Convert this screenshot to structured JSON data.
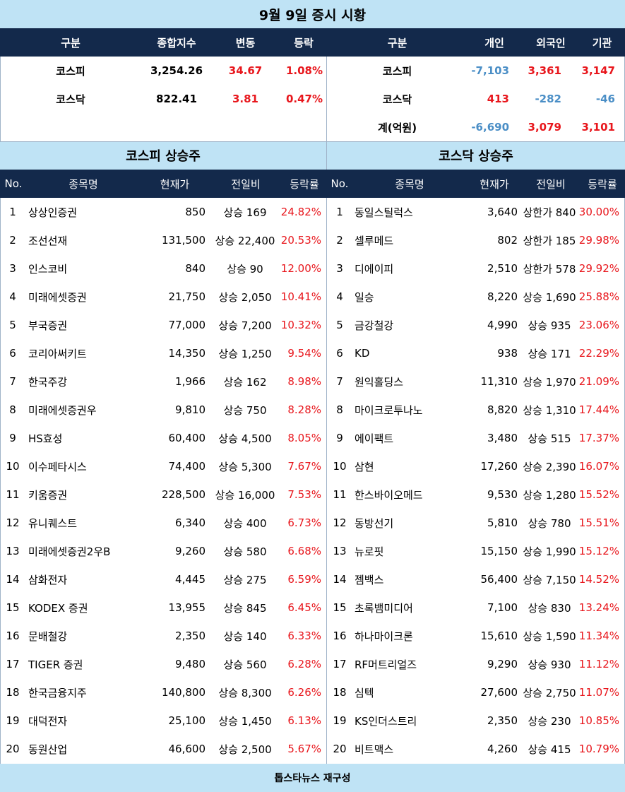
{
  "title": "9월 9일 증시 시황",
  "summary": {
    "index_headers": [
      "구분",
      "종합지수",
      "변동",
      "등락"
    ],
    "index_rows": [
      {
        "name": "코스피",
        "index": "3,254.26",
        "change": "34.67",
        "rate": "1.08%"
      },
      {
        "name": "코스닥",
        "index": "822.41",
        "change": "3.81",
        "rate": "0.47%"
      }
    ],
    "investor_headers": [
      "구분",
      "개인",
      "외국인",
      "기관"
    ],
    "investor_rows": [
      {
        "name": "코스피",
        "individual": "-7,103",
        "foreign": "3,361",
        "institution": "3,147"
      },
      {
        "name": "코스닥",
        "individual": "413",
        "foreign": "-282",
        "institution": "-46"
      },
      {
        "name": "계(억원)",
        "individual": "-6,690",
        "foreign": "3,079",
        "institution": "3,101"
      }
    ]
  },
  "kospi": {
    "title": "코스피 상승주",
    "headers": [
      "No.",
      "종목명",
      "현재가",
      "전일비",
      "등락률"
    ],
    "rows": [
      {
        "no": "1",
        "name": "상상인증권",
        "price": "850",
        "diff": "상승 169",
        "rate": "24.82%"
      },
      {
        "no": "2",
        "name": "조선선재",
        "price": "131,500",
        "diff": "상승 22,400",
        "rate": "20.53%"
      },
      {
        "no": "3",
        "name": "인스코비",
        "price": "840",
        "diff": "상승 90",
        "rate": "12.00%"
      },
      {
        "no": "4",
        "name": "미래에셋증권",
        "price": "21,750",
        "diff": "상승 2,050",
        "rate": "10.41%"
      },
      {
        "no": "5",
        "name": "부국증권",
        "price": "77,000",
        "diff": "상승 7,200",
        "rate": "10.32%"
      },
      {
        "no": "6",
        "name": "코리아써키트",
        "price": "14,350",
        "diff": "상승 1,250",
        "rate": "9.54%"
      },
      {
        "no": "7",
        "name": "한국주강",
        "price": "1,966",
        "diff": "상승 162",
        "rate": "8.98%"
      },
      {
        "no": "8",
        "name": "미래에셋증권우",
        "price": "9,810",
        "diff": "상승 750",
        "rate": "8.28%"
      },
      {
        "no": "9",
        "name": "HS효성",
        "price": "60,400",
        "diff": "상승 4,500",
        "rate": "8.05%"
      },
      {
        "no": "10",
        "name": "이수페타시스",
        "price": "74,400",
        "diff": "상승 5,300",
        "rate": "7.67%"
      },
      {
        "no": "11",
        "name": "키움증권",
        "price": "228,500",
        "diff": "상승 16,000",
        "rate": "7.53%"
      },
      {
        "no": "12",
        "name": "유니퀘스트",
        "price": "6,340",
        "diff": "상승 400",
        "rate": "6.73%"
      },
      {
        "no": "13",
        "name": "미래에셋증권2우B",
        "price": "9,260",
        "diff": "상승 580",
        "rate": "6.68%"
      },
      {
        "no": "14",
        "name": "삼화전자",
        "price": "4,445",
        "diff": "상승 275",
        "rate": "6.59%"
      },
      {
        "no": "15",
        "name": "KODEX 증권",
        "price": "13,955",
        "diff": "상승 845",
        "rate": "6.45%"
      },
      {
        "no": "16",
        "name": "문배철강",
        "price": "2,350",
        "diff": "상승 140",
        "rate": "6.33%"
      },
      {
        "no": "17",
        "name": "TIGER 증권",
        "price": "9,480",
        "diff": "상승 560",
        "rate": "6.28%"
      },
      {
        "no": "18",
        "name": "한국금융지주",
        "price": "140,800",
        "diff": "상승 8,300",
        "rate": "6.26%"
      },
      {
        "no": "19",
        "name": "대덕전자",
        "price": "25,100",
        "diff": "상승 1,450",
        "rate": "6.13%"
      },
      {
        "no": "20",
        "name": "동원산업",
        "price": "46,600",
        "diff": "상승 2,500",
        "rate": "5.67%"
      }
    ]
  },
  "kosdaq": {
    "title": "코스닥 상승주",
    "headers": [
      "No.",
      "종목명",
      "현재가",
      "전일비",
      "등락률"
    ],
    "rows": [
      {
        "no": "1",
        "name": "동일스틸럭스",
        "price": "3,640",
        "diff": "상한가 840",
        "rate": "30.00%"
      },
      {
        "no": "2",
        "name": "셀루메드",
        "price": "802",
        "diff": "상한가 185",
        "rate": "29.98%"
      },
      {
        "no": "3",
        "name": "디에이피",
        "price": "2,510",
        "diff": "상한가 578",
        "rate": "29.92%"
      },
      {
        "no": "4",
        "name": "일승",
        "price": "8,220",
        "diff": "상승 1,690",
        "rate": "25.88%"
      },
      {
        "no": "5",
        "name": "금강철강",
        "price": "4,990",
        "diff": "상승 935",
        "rate": "23.06%"
      },
      {
        "no": "6",
        "name": "KD",
        "price": "938",
        "diff": "상승 171",
        "rate": "22.29%"
      },
      {
        "no": "7",
        "name": "원익홀딩스",
        "price": "11,310",
        "diff": "상승 1,970",
        "rate": "21.09%"
      },
      {
        "no": "8",
        "name": "마이크로투나노",
        "price": "8,820",
        "diff": "상승 1,310",
        "rate": "17.44%"
      },
      {
        "no": "9",
        "name": "에이팩트",
        "price": "3,480",
        "diff": "상승 515",
        "rate": "17.37%"
      },
      {
        "no": "10",
        "name": "삼현",
        "price": "17,260",
        "diff": "상승 2,390",
        "rate": "16.07%"
      },
      {
        "no": "11",
        "name": "한스바이오메드",
        "price": "9,530",
        "diff": "상승 1,280",
        "rate": "15.52%"
      },
      {
        "no": "12",
        "name": "동방선기",
        "price": "5,810",
        "diff": "상승 780",
        "rate": "15.51%"
      },
      {
        "no": "13",
        "name": "뉴로핏",
        "price": "15,150",
        "diff": "상승 1,990",
        "rate": "15.12%"
      },
      {
        "no": "14",
        "name": "젬백스",
        "price": "56,400",
        "diff": "상승 7,150",
        "rate": "14.52%"
      },
      {
        "no": "15",
        "name": "초록뱀미디어",
        "price": "7,100",
        "diff": "상승 830",
        "rate": "13.24%"
      },
      {
        "no": "16",
        "name": "하나마이크론",
        "price": "15,610",
        "diff": "상승 1,590",
        "rate": "11.34%"
      },
      {
        "no": "17",
        "name": "RF머트리얼즈",
        "price": "9,290",
        "diff": "상승 930",
        "rate": "11.12%"
      },
      {
        "no": "18",
        "name": "심텍",
        "price": "27,600",
        "diff": "상승 2,750",
        "rate": "11.07%"
      },
      {
        "no": "19",
        "name": "KS인더스트리",
        "price": "2,350",
        "diff": "상승 230",
        "rate": "10.85%"
      },
      {
        "no": "20",
        "name": "비트맥스",
        "price": "4,260",
        "diff": "상승 415",
        "rate": "10.79%"
      }
    ]
  },
  "footer": "톱스타뉴스 재구성",
  "colors": {
    "header_bg": "#13294b",
    "section_bg": "#bfe3f5",
    "up": "#e8161c",
    "down": "#4a8ec6"
  }
}
